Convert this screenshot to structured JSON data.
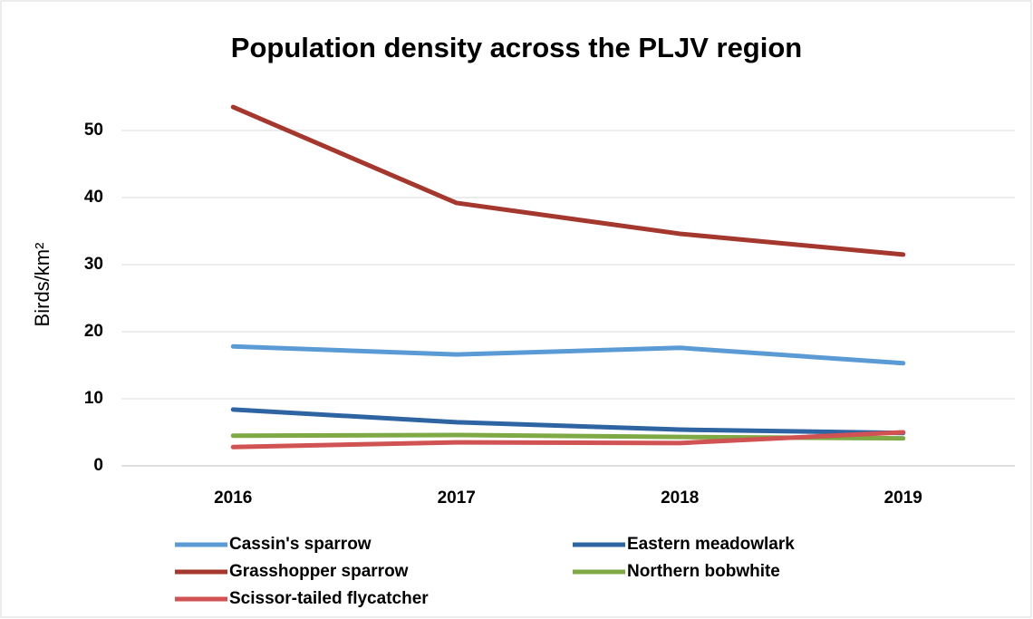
{
  "chart_data": {
    "type": "line",
    "title": "Population density across the PLJV region",
    "y_label": "Birds/km²",
    "categories": [
      "2016",
      "2017",
      "2018",
      "2019"
    ],
    "series": [
      {
        "name": "Cassin's sparrow",
        "color": "#5b9bd5",
        "values": [
          17.8,
          16.6,
          17.6,
          15.3
        ]
      },
      {
        "name": "Eastern meadowlark",
        "color": "#2f64a3",
        "values": [
          8.4,
          6.5,
          5.4,
          4.9
        ]
      },
      {
        "name": "Grasshopper sparrow",
        "color": "#a5382e",
        "values": [
          53.5,
          39.2,
          34.6,
          31.5
        ]
      },
      {
        "name": "Northern bobwhite",
        "color": "#7fa944",
        "values": [
          4.5,
          4.6,
          4.3,
          4.1
        ]
      },
      {
        "name": "Scissor-tailed flycatcher",
        "color": "#d15252",
        "values": [
          2.8,
          3.5,
          3.4,
          5.0
        ]
      }
    ],
    "ylim": [
      0,
      55
    ],
    "yticks": [
      0,
      10,
      20,
      30,
      40,
      50
    ],
    "grid": true
  }
}
